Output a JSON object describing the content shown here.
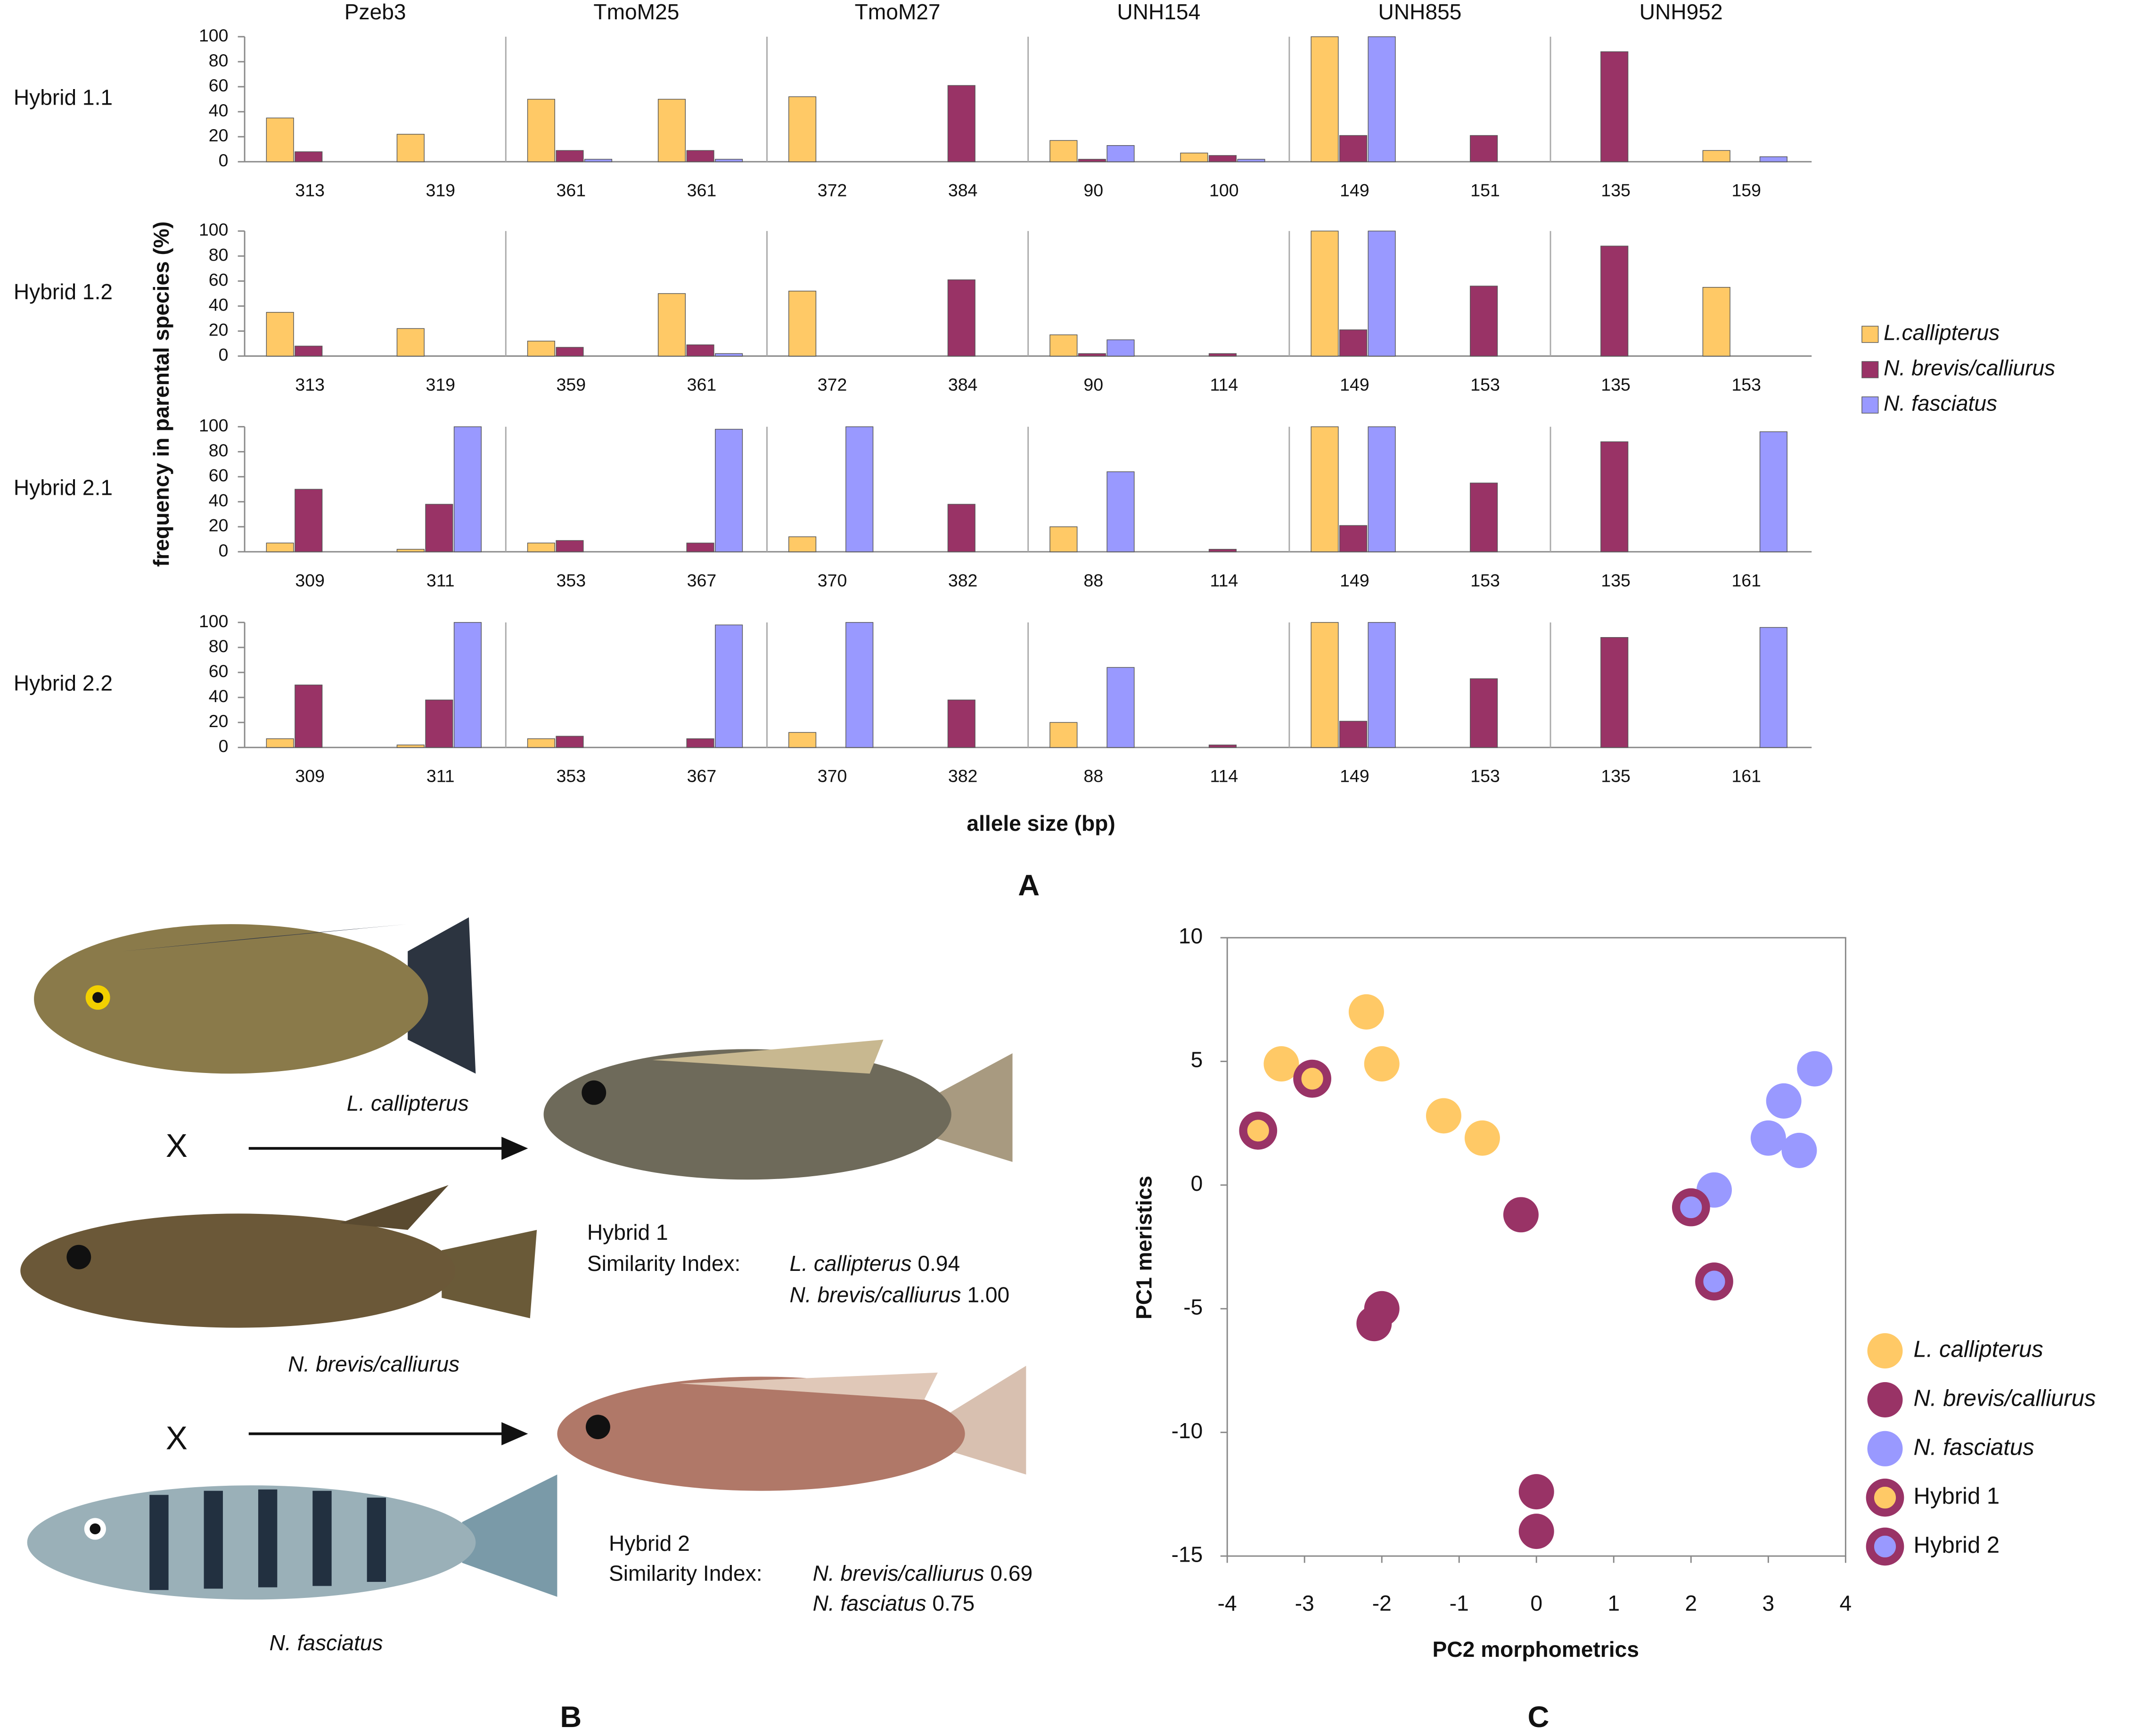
{
  "chart_data": [
    {
      "type": "grouped_bar_grid",
      "panel": "A",
      "ylabel": "frequency in parental species (%)",
      "xlabel": "allele size (bp)",
      "ylim": [
        0,
        100
      ],
      "yticks": [
        0,
        20,
        40,
        60,
        80,
        100
      ],
      "markers": [
        "Pzeb3",
        "TmoM25",
        "TmoM27",
        "UNH154",
        "UNH855",
        "UNH952"
      ],
      "series": [
        {
          "name": "L.callipterus",
          "color": "#ffc966"
        },
        {
          "name": "N. brevis/calliurus",
          "color": "#993366"
        },
        {
          "name": "N. fasciatus",
          "color": "#9999ff"
        }
      ],
      "rows": [
        {
          "label": "Hybrid 1.1",
          "alleles": [
            [
              313,
              319
            ],
            [
              361,
              361
            ],
            [
              372,
              384
            ],
            [
              90,
              100
            ],
            [
              149,
              151
            ],
            [
              135,
              159
            ]
          ],
          "values": [
            [
              [
                35,
                8,
                0
              ],
              [
                22,
                0,
                0
              ]
            ],
            [
              [
                50,
                9,
                2
              ],
              [
                50,
                9,
                2
              ]
            ],
            [
              [
                52,
                0,
                0
              ],
              [
                0,
                61,
                0
              ]
            ],
            [
              [
                17,
                2,
                13
              ],
              [
                7,
                5,
                2
              ]
            ],
            [
              [
                100,
                21,
                100
              ],
              [
                0,
                21,
                0
              ]
            ],
            [
              [
                0,
                88,
                0
              ],
              [
                9,
                0,
                4
              ]
            ]
          ]
        },
        {
          "label": "Hybrid 1.2",
          "alleles": [
            [
              313,
              319
            ],
            [
              359,
              361
            ],
            [
              372,
              384
            ],
            [
              90,
              114
            ],
            [
              149,
              153
            ],
            [
              135,
              153
            ]
          ],
          "values": [
            [
              [
                35,
                8,
                0
              ],
              [
                22,
                0,
                0
              ]
            ],
            [
              [
                12,
                7,
                0
              ],
              [
                50,
                9,
                2
              ]
            ],
            [
              [
                52,
                0,
                0
              ],
              [
                0,
                61,
                0
              ]
            ],
            [
              [
                17,
                2,
                13
              ],
              [
                0,
                2,
                0
              ]
            ],
            [
              [
                100,
                21,
                100
              ],
              [
                0,
                56,
                0
              ]
            ],
            [
              [
                0,
                88,
                0
              ],
              [
                55,
                0,
                0
              ]
            ]
          ]
        },
        {
          "label": "Hybrid 2.1",
          "alleles": [
            [
              309,
              311
            ],
            [
              353,
              367
            ],
            [
              370,
              382
            ],
            [
              88,
              114
            ],
            [
              149,
              153
            ],
            [
              135,
              161
            ]
          ],
          "values": [
            [
              [
                7,
                50,
                0
              ],
              [
                2,
                38,
                100
              ]
            ],
            [
              [
                7,
                9,
                0
              ],
              [
                0,
                7,
                98
              ]
            ],
            [
              [
                12,
                0,
                100
              ],
              [
                0,
                38,
                0
              ]
            ],
            [
              [
                20,
                0,
                64
              ],
              [
                0,
                2,
                0
              ]
            ],
            [
              [
                100,
                21,
                100
              ],
              [
                0,
                55,
                0
              ]
            ],
            [
              [
                0,
                88,
                0
              ],
              [
                0,
                0,
                96
              ]
            ]
          ]
        },
        {
          "label": "Hybrid 2.2",
          "alleles": [
            [
              309,
              311
            ],
            [
              353,
              367
            ],
            [
              370,
              382
            ],
            [
              88,
              114
            ],
            [
              149,
              153
            ],
            [
              135,
              161
            ]
          ],
          "values": [
            [
              [
                7,
                50,
                0
              ],
              [
                2,
                38,
                100
              ]
            ],
            [
              [
                7,
                9,
                0
              ],
              [
                0,
                7,
                98
              ]
            ],
            [
              [
                12,
                0,
                100
              ],
              [
                0,
                38,
                0
              ]
            ],
            [
              [
                20,
                0,
                64
              ],
              [
                0,
                2,
                0
              ]
            ],
            [
              [
                100,
                21,
                100
              ],
              [
                0,
                55,
                0
              ]
            ],
            [
              [
                0,
                88,
                0
              ],
              [
                0,
                0,
                96
              ]
            ]
          ]
        }
      ]
    },
    {
      "type": "scatter",
      "panel": "C",
      "xlabel": "PC2 morphometrics",
      "ylabel": "PC1 meristics",
      "xlim": [
        -4,
        4
      ],
      "xticks": [
        -4,
        -3,
        -2,
        -1,
        0,
        1,
        2,
        3,
        4
      ],
      "ylim": [
        -15,
        10
      ],
      "yticks": [
        -15,
        -10,
        -5,
        0,
        5,
        10
      ],
      "series": [
        {
          "name": "L. callipterus",
          "color": "#ffc966",
          "x": [
            -3.3,
            -2.2,
            -2.0,
            -1.2,
            -0.7
          ],
          "values": [
            4.9,
            7.0,
            4.9,
            2.8,
            1.9
          ]
        },
        {
          "name": "N. brevis/calliurus",
          "color": "#993366",
          "x": [
            -0.2,
            -2.1,
            -2.0,
            0.0,
            0.0
          ],
          "values": [
            -1.2,
            -5.6,
            -5.0,
            -12.4,
            -14.0
          ]
        },
        {
          "name": "N. fasciatus",
          "color": "#9999ff",
          "x": [
            2.3,
            3.2,
            3.6,
            3.0,
            3.4
          ],
          "values": [
            -0.2,
            3.4,
            4.7,
            1.9,
            1.4
          ]
        },
        {
          "name": "Hybrid 1",
          "color": "#ffc966",
          "edgecolor": "#993366",
          "x": [
            -3.6,
            -2.9
          ],
          "values": [
            2.2,
            4.3
          ]
        },
        {
          "name": "Hybrid 2",
          "color": "#9999ff",
          "edgecolor": "#993366",
          "x": [
            2.0,
            2.3
          ],
          "values": [
            -0.9,
            -3.9
          ]
        }
      ]
    }
  ],
  "panel_b": {
    "panel": "B",
    "species": [
      "L. callipterus",
      "N. brevis/calliurus",
      "N. fasciatus"
    ],
    "cross_symbol": [
      "X",
      "X"
    ],
    "hybrids": [
      {
        "name": "Hybrid 1",
        "index_label": "Similarity Index:",
        "scores": [
          {
            "species": "L. callipterus",
            "value": "0.94"
          },
          {
            "species": "N. brevis/calliurus",
            "value": "1.00"
          }
        ]
      },
      {
        "name": "Hybrid 2",
        "index_label": "Similarity Index:",
        "scores": [
          {
            "species": "N. brevis/calliurus",
            "value": "0.69"
          },
          {
            "species": "N. fasciatus",
            "value": "0.75"
          }
        ]
      }
    ]
  }
}
